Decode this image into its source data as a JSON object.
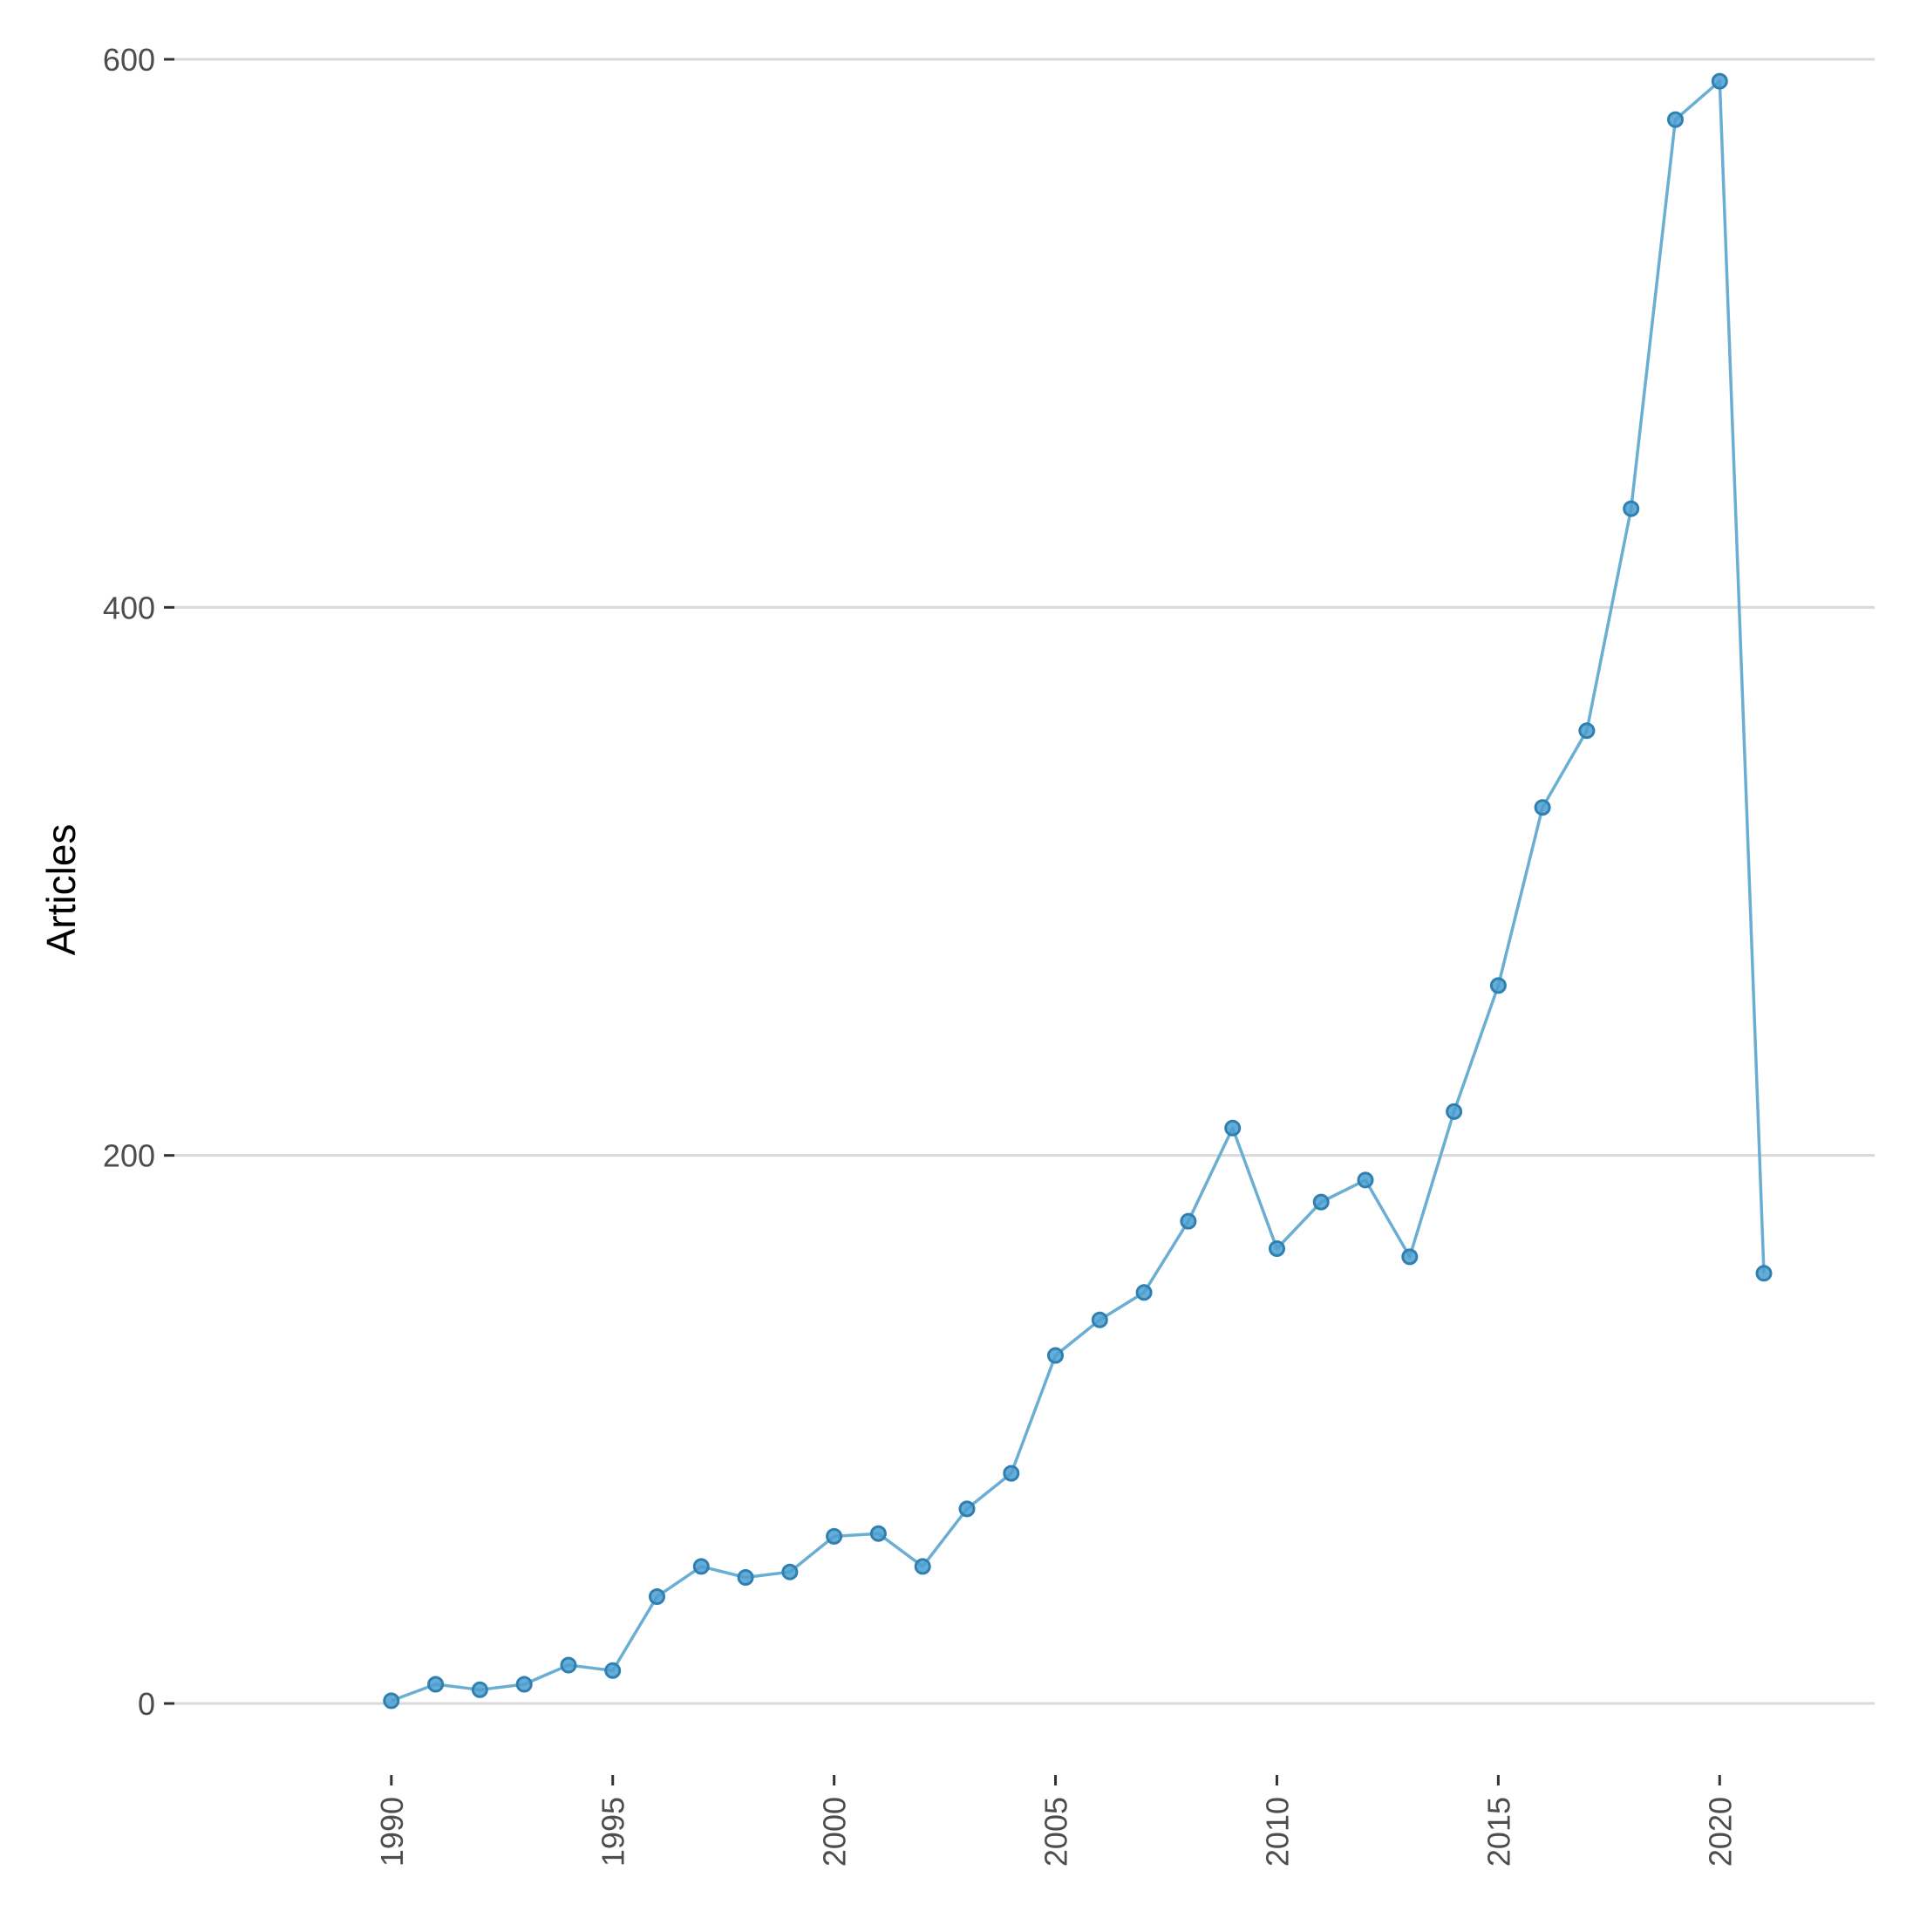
{
  "chart_data": {
    "type": "line",
    "ylabel": "Articles",
    "xlabel": "",
    "x_ticks": [
      "1990",
      "1995",
      "2000",
      "2005",
      "2010",
      "2015",
      "2020"
    ],
    "y_ticks": [
      "0",
      "200",
      "400",
      "600"
    ],
    "xlim": [
      1985.1,
      2023.5
    ],
    "ylim": [
      -19,
      600
    ],
    "grid": "horizontal-major",
    "colors": {
      "line": "#6aaed3",
      "point_fill": "#4a9fd0",
      "point_stroke": "#2f7fb0"
    },
    "series": [
      {
        "x": [
          1990,
          1991,
          1992,
          1993,
          1994,
          1995,
          1996,
          1997,
          1998,
          1999,
          2000,
          2001,
          2002,
          2003,
          2004,
          2005,
          2006,
          2007,
          2008,
          2009,
          2010,
          2011,
          2012,
          2013,
          2014,
          2015,
          2016,
          2017,
          2018,
          2019,
          2020,
          2021
        ],
        "y": [
          1,
          7,
          5,
          7,
          14,
          12,
          39,
          50,
          46,
          48,
          61,
          62,
          50,
          71,
          84,
          127,
          140,
          150,
          176,
          210,
          166,
          183,
          191,
          163,
          216,
          262,
          327,
          355,
          436,
          578,
          592,
          157
        ]
      }
    ]
  }
}
